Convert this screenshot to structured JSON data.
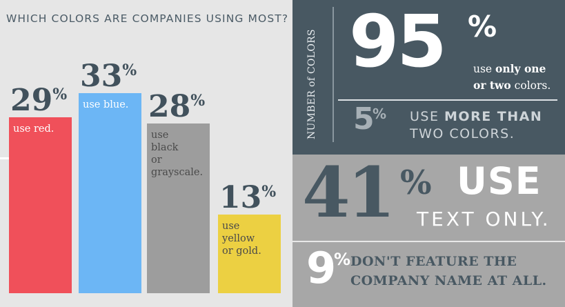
{
  "chart_data": {
    "type": "bar",
    "title": "WHICH COLORS ARE COMPANIES USING MOST?",
    "categories": [
      "use red.",
      "use blue.",
      "use black or grayscale.",
      "use yellow or gold."
    ],
    "values": [
      29,
      33,
      28,
      13
    ],
    "value_labels": [
      "29",
      "33",
      "28",
      "13"
    ],
    "unit_symbol": "%",
    "colors": [
      "#f0505a",
      "#6cb6f5",
      "#9d9d9d",
      "#ecd042"
    ],
    "label_colors": [
      "#ffffff",
      "#ffffff",
      "#4a4a4a",
      "#4a4a4a"
    ],
    "ylim": [
      0,
      33
    ],
    "grid": false,
    "xlabel": "",
    "ylabel": ""
  },
  "bar_labels": [
    "use red.",
    "use blue.",
    "use\nblack\nor\ngrayscale.",
    "use\nyellow\nor gold."
  ],
  "stats": {
    "vertical_label": "NUMBER of COLORS",
    "stat95": {
      "number": "95",
      "symbol": "%",
      "text_plain": "use ",
      "text_bold": "only one",
      "text_line2_bold": "or two",
      "text_line2_plain": " colors."
    },
    "stat5": {
      "number": "5",
      "symbol": "%",
      "line1_plain": "USE ",
      "line1_bold": "MORE THAN",
      "line2": "TWO COLORS."
    },
    "stat41": {
      "number": "41",
      "symbol": "%",
      "word": "USE",
      "line2": "TEXT ONLY."
    },
    "stat9": {
      "number": "9",
      "symbol": "%",
      "line1": "DON'T FEATURE THE",
      "line2": "COMPANY NAME AT ALL."
    }
  },
  "panel_colors": {
    "dark": "#485862",
    "gray": "#a7a7a7",
    "background": "#e6e6e6"
  }
}
